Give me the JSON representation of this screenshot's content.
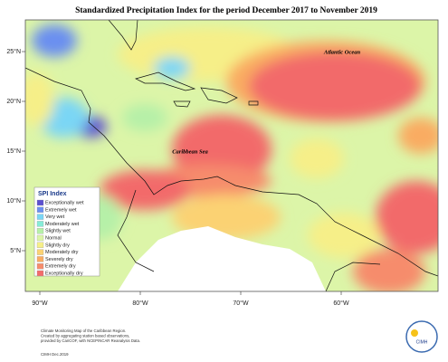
{
  "map": {
    "title": "Standardized Precipitation Index for the period December 2017 to November 2019",
    "lat_ticks": [
      {
        "value": 25,
        "label": "25°N"
      },
      {
        "value": 20,
        "label": "20°N"
      },
      {
        "value": 15,
        "label": "15°N"
      },
      {
        "value": 10,
        "label": "10°N"
      },
      {
        "value": 5,
        "label": "5°N"
      }
    ],
    "lon_ticks": [
      {
        "value": -90,
        "label": "90°W"
      },
      {
        "value": -80,
        "label": "80°W"
      },
      {
        "value": -70,
        "label": "70°W"
      },
      {
        "value": -60,
        "label": "60°W"
      }
    ],
    "annotations": [
      "Atlantic Ocean",
      "Caribbean Sea"
    ],
    "legend": {
      "title": "SPI Index",
      "items": [
        {
          "label": "Exceptionally wet",
          "color": "#5b4fd0"
        },
        {
          "label": "Extremely wet",
          "color": "#6b8ff0"
        },
        {
          "label": "Very wet",
          "color": "#7ad6f5"
        },
        {
          "label": "Moderately wet",
          "color": "#86ecd8"
        },
        {
          "label": "Slightly wet",
          "color": "#b6f0a8"
        },
        {
          "label": "Normal",
          "color": "#dcf5a8"
        },
        {
          "label": "Slightly dry",
          "color": "#f6ef88"
        },
        {
          "label": "Moderately dry",
          "color": "#fbd273"
        },
        {
          "label": "Severely dry",
          "color": "#f9ac62"
        },
        {
          "label": "Extremely dry",
          "color": "#f68c6c"
        },
        {
          "label": "Exceptionally dry",
          "color": "#f26b6b"
        }
      ]
    },
    "footer": [
      "Climate Monitoring Map of the Caribbean Region.",
      "Created by aggregating station based observations,",
      "provided by CariCOF, with NCEP/NCAR Reanalysis Data."
    ],
    "credit": "CIMH Dec.2019",
    "logo": "CIMH"
  }
}
